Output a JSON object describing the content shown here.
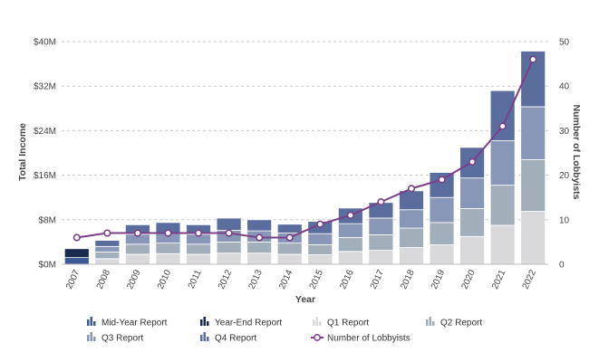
{
  "chart_data": {
    "type": "bar",
    "subtype": "stacked bar with line on secondary axis",
    "title": "",
    "xlabel": "Year",
    "ylabel_left": "Total Income",
    "ylabel_right": "Number of Lobbyists",
    "ylim_left": [
      0,
      40
    ],
    "ylim_right": [
      0,
      50
    ],
    "y_left_ticks": [
      "$0M",
      "$8M",
      "$16M",
      "$24M",
      "$32M",
      "$40M"
    ],
    "y_right_ticks": [
      "0",
      "10",
      "20",
      "30",
      "40",
      "50"
    ],
    "categories": [
      "2007",
      "2008",
      "2009",
      "2010",
      "2011",
      "2012",
      "2013",
      "2014",
      "2015",
      "2016",
      "2017",
      "2018",
      "2019",
      "2020",
      "2021",
      "2022"
    ],
    "grid": "horizontal dashed",
    "legend_position": "bottom",
    "series": [
      {
        "name": "Mid-Year Report",
        "kind": "bar",
        "color": "#3c5a96",
        "values": [
          1.2,
          0,
          0,
          0,
          0,
          0,
          0,
          0,
          0,
          0,
          0,
          0,
          0,
          0,
          0,
          0
        ]
      },
      {
        "name": "Year-End Report",
        "kind": "bar",
        "color": "#1a2a4e",
        "values": [
          1.6,
          0,
          0,
          0,
          0,
          0,
          0,
          0,
          0,
          0,
          0,
          0,
          0,
          0,
          0,
          0
        ]
      },
      {
        "name": "Q1 Report",
        "kind": "bar",
        "color": "#d9d9db",
        "values": [
          0,
          1.0,
          1.8,
          1.9,
          1.8,
          2.0,
          2.0,
          1.8,
          1.7,
          2.3,
          2.5,
          3.0,
          3.5,
          5.0,
          7.0,
          9.5
        ]
      },
      {
        "name": "Q2 Report",
        "kind": "bar",
        "color": "#a3aebb",
        "values": [
          0,
          1.2,
          1.8,
          1.9,
          1.8,
          2.0,
          2.0,
          2.0,
          1.8,
          2.5,
          2.8,
          3.5,
          4.0,
          5.0,
          7.2,
          9.3
        ]
      },
      {
        "name": "Q3 Report",
        "kind": "bar",
        "color": "#8897b8",
        "values": [
          0,
          1.0,
          1.8,
          1.9,
          1.8,
          2.1,
          2.0,
          1.8,
          2.0,
          2.5,
          3.0,
          3.3,
          4.5,
          5.5,
          8.0,
          9.5
        ]
      },
      {
        "name": "Q4 Report",
        "kind": "bar",
        "color": "#5a6e9e",
        "values": [
          0,
          1.1,
          1.7,
          1.8,
          1.7,
          2.2,
          2.0,
          1.6,
          2.2,
          2.8,
          2.8,
          3.4,
          4.5,
          5.5,
          9.0,
          10.0
        ]
      },
      {
        "name": "Number of Lobbyists",
        "kind": "line",
        "axis": "right",
        "color": "#7b3f8a",
        "values": [
          6,
          7,
          7,
          7,
          7,
          7,
          6,
          6,
          9,
          11,
          14,
          17,
          19,
          23,
          31,
          46
        ]
      }
    ]
  }
}
